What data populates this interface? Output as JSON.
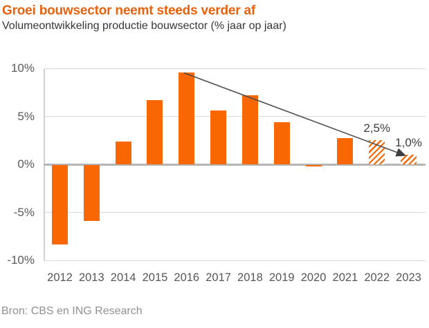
{
  "header": {
    "title": "Groei bouwsector neemt steeds verder af",
    "subtitle": "Volumeontwikkeling productie bouwsector (% jaar op jaar)"
  },
  "footer": {
    "source": "Bron: CBS en ING Research"
  },
  "colors": {
    "bar_orange": "#f96702",
    "title_orange": "#e8620d",
    "trend_line_gray": "#4d4d4d",
    "grid_gray": "#d9d9d9",
    "zero_axis_gray": "#b4b4b4",
    "tick_text_gray": "#595959"
  },
  "chart_data": {
    "type": "bar",
    "title": "Groei bouwsector neemt steeds verder af",
    "subtitle": "Volumeontwikkeling productie bouwsector (% jaar op jaar)",
    "categories": [
      "2012",
      "2013",
      "2014",
      "2015",
      "2016",
      "2017",
      "2018",
      "2019",
      "2020",
      "2021",
      "2022",
      "2023"
    ],
    "values": [
      -8.3,
      -5.8,
      2.4,
      6.7,
      9.6,
      5.6,
      7.2,
      4.4,
      -0.1,
      2.7,
      2.5,
      1.0
    ],
    "forecast": [
      false,
      false,
      false,
      false,
      false,
      false,
      false,
      false,
      false,
      false,
      true,
      true
    ],
    "point_labels": [
      null,
      null,
      null,
      null,
      null,
      null,
      null,
      null,
      null,
      null,
      "2,5%",
      "1,0%"
    ],
    "xlabel": "",
    "ylabel": "% jaar op jaar",
    "ylim": [
      -10,
      10
    ],
    "yticks": [
      {
        "value": 10,
        "label": "10%"
      },
      {
        "value": 5,
        "label": "5%"
      },
      {
        "value": 0,
        "label": "0%"
      },
      {
        "value": -5,
        "label": "-5%"
      },
      {
        "value": -10,
        "label": "-10%"
      }
    ],
    "grid": true,
    "legend": null,
    "annotations": {
      "trend_arrow": {
        "from_year": "2016",
        "from_value": 9.6,
        "to_year": "2023",
        "to_value": 1.0
      }
    }
  }
}
